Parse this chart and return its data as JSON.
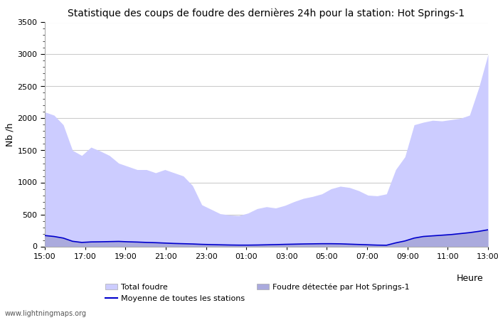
{
  "title": "Statistique des coups de foudre des dernières 24h pour la station: Hot Springs-1",
  "ylabel": "Nb /h",
  "xlabel": "Heure",
  "ylim": [
    0,
    3500
  ],
  "yticks": [
    0,
    500,
    1000,
    1500,
    2000,
    2500,
    3000,
    3500
  ],
  "xtick_labels": [
    "15:00",
    "17:00",
    "19:00",
    "21:00",
    "23:00",
    "01:00",
    "03:00",
    "05:00",
    "07:00",
    "09:00",
    "11:00",
    "13:00"
  ],
  "color_total": "#ccccff",
  "color_detected": "#aaaadd",
  "color_mean": "#0000cc",
  "watermark": "www.lightningmaps.org",
  "legend_total": "Total foudre",
  "legend_detected": "Foudre détectée par Hot Springs-1",
  "legend_mean": "Moyenne de toutes les stations",
  "total_foudre": [
    2100,
    2050,
    1900,
    1500,
    1420,
    1550,
    1490,
    1420,
    1300,
    1250,
    1200,
    1200,
    1150,
    1200,
    1150,
    1100,
    950,
    650,
    580,
    510,
    490,
    480,
    520,
    590,
    620,
    600,
    640,
    700,
    750,
    780,
    820,
    900,
    940,
    920,
    870,
    800,
    790,
    820,
    1200,
    1400,
    1900,
    1940,
    1970,
    1960,
    1980,
    2000,
    2050,
    2480,
    3000
  ],
  "detected_foudre": [
    170,
    155,
    130,
    80,
    62,
    70,
    72,
    75,
    78,
    72,
    68,
    62,
    58,
    52,
    46,
    42,
    38,
    32,
    28,
    25,
    22,
    20,
    20,
    22,
    25,
    28,
    32,
    35,
    38,
    40,
    42,
    42,
    40,
    35,
    30,
    25,
    20,
    18,
    55,
    85,
    130,
    155,
    165,
    175,
    185,
    200,
    215,
    235,
    260
  ],
  "mean_foudre": [
    170,
    155,
    130,
    80,
    62,
    70,
    72,
    75,
    78,
    72,
    68,
    62,
    58,
    52,
    46,
    42,
    38,
    32,
    28,
    25,
    22,
    20,
    20,
    22,
    25,
    28,
    32,
    35,
    38,
    40,
    42,
    42,
    40,
    35,
    30,
    25,
    20,
    18,
    55,
    85,
    130,
    155,
    165,
    175,
    185,
    200,
    215,
    235,
    260
  ],
  "n_points": 49,
  "background_color": "#ffffff",
  "grid_color": "#cccccc",
  "title_fontsize": 10,
  "axis_fontsize": 8,
  "watermark_fontsize": 7
}
